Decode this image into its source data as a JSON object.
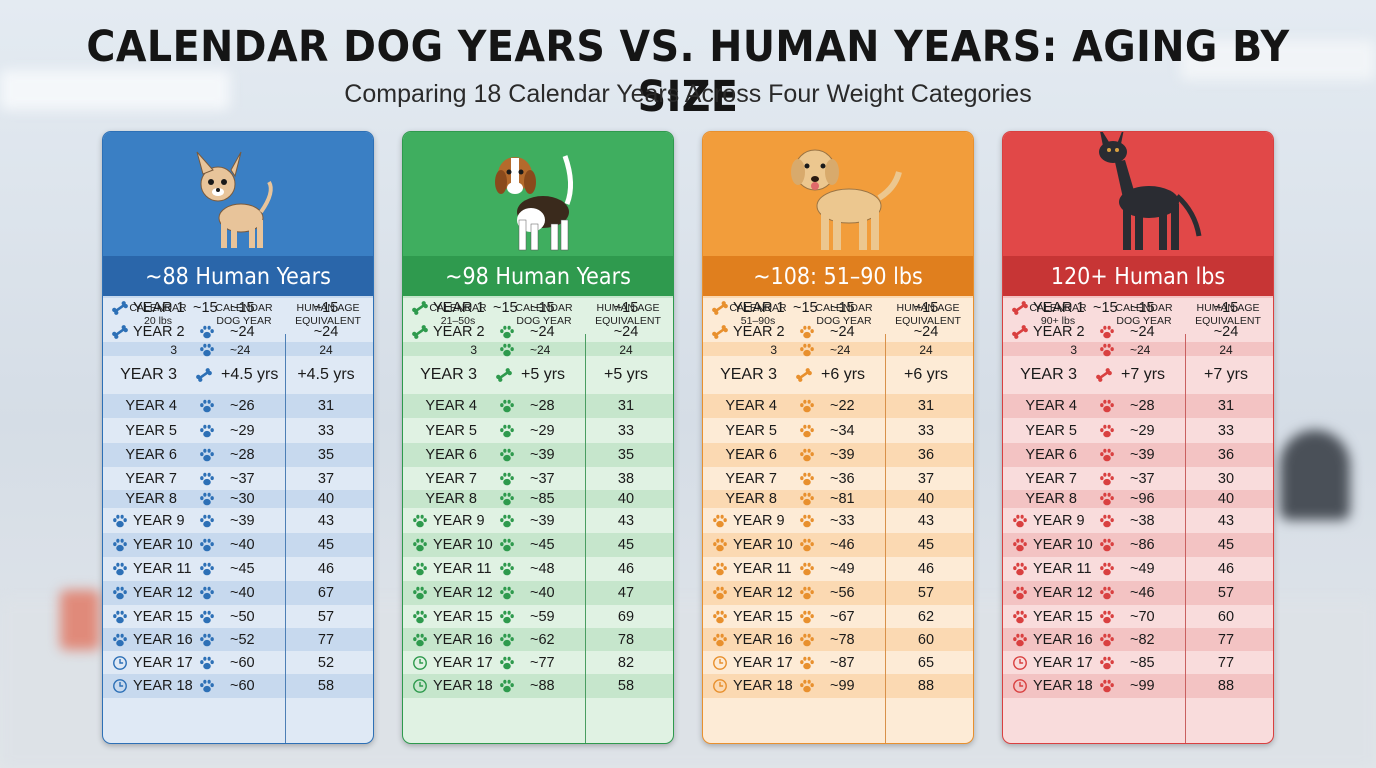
{
  "title": "CALENDAR DOG YEARS VS. HUMAN YEARS: AGING BY SIZE",
  "subtitle": "Comparing 18 Calendar Years Across Four Weight Categories",
  "panels": [
    {
      "id": "small",
      "band": "~88 Human Years",
      "h1": "CALENDAR\n20 lbs",
      "h2": "CALENDAR\nDOG YEAR",
      "h3": "HUMAN AGE\nEQUIVALENT",
      "year3_dog": "+4.5 yrs",
      "year3_human": "+4.5 yrs",
      "accent": "#2d70b6",
      "band_color": "#2a66aa",
      "top_color": "#3a7fc4",
      "row_light": "#dfe9f5",
      "row_dark": "#c7d9ee",
      "line_color": "#4d7fb5",
      "dog": "chihuahua",
      "dog_vals": [
        "~15",
        "~24",
        "~24",
        "",
        "~26",
        "~29",
        "~28",
        "~37",
        "~30",
        "~39",
        "~40",
        "~45",
        "~40",
        "~50",
        "~52",
        "~60",
        "~60"
      ],
      "human_vals": [
        "~15",
        "~24",
        "24",
        "",
        "31",
        "33",
        "35",
        "37",
        "40",
        "43",
        "45",
        "46",
        "67",
        "57",
        "77",
        "52",
        "58"
      ]
    },
    {
      "id": "medium",
      "band": "~98 Human Years",
      "h1": "CALENDAR\n21–50s",
      "h2": "CALENDAR\nDOG YEAR",
      "h3": "HUMAN AGE\nEQUIVALENT",
      "year3_dog": "+5 yrs",
      "year3_human": "+5 yrs",
      "accent": "#2e9a4d",
      "band_color": "#2f9a4e",
      "top_color": "#3fae5f",
      "row_light": "#e0f2e3",
      "row_dark": "#c6e6cc",
      "line_color": "#4a9d61",
      "dog": "beagle",
      "dog_vals": [
        "~15",
        "~24",
        "~24",
        "",
        "~28",
        "~29",
        "~39",
        "~37",
        "~85",
        "~39",
        "~45",
        "~48",
        "~40",
        "~59",
        "~62",
        "~77",
        "~88"
      ],
      "human_vals": [
        "~15",
        "~24",
        "24",
        "",
        "31",
        "33",
        "35",
        "38",
        "40",
        "43",
        "45",
        "46",
        "47",
        "69",
        "78",
        "82",
        "58"
      ]
    },
    {
      "id": "large",
      "band": "~108: 51–90 lbs",
      "h1": "CALENDAR\n51–90s",
      "h2": "CALENDAR\nDOG YEAR",
      "h3": "HUMAN AGE\nEQUIVALENT",
      "year3_dog": "+6 yrs",
      "year3_human": "+6 yrs",
      "accent": "#e8902e",
      "band_color": "#e07f1e",
      "top_color": "#f29d3b",
      "row_light": "#fdebd6",
      "row_dark": "#fbd9b2",
      "line_color": "#d8914a",
      "dog": "lab",
      "dog_vals": [
        "~15",
        "~24",
        "~24",
        "",
        "~22",
        "~34",
        "~39",
        "~36",
        "~81",
        "~33",
        "~46",
        "~49",
        "~56",
        "~67",
        "~78",
        "~87",
        "~99"
      ],
      "human_vals": [
        "~15",
        "~24",
        "24",
        "",
        "31",
        "33",
        "36",
        "37",
        "40",
        "43",
        "45",
        "46",
        "57",
        "62",
        "60",
        "65",
        "88"
      ]
    },
    {
      "id": "giant",
      "band": "120+ Human lbs",
      "h1": "CALENDAR\n90+ lbs",
      "h2": "CALENDAR\nDOG YEAR",
      "h3": "HUMAN AGE\nEQUIVALENT",
      "year3_dog": "+7 yrs",
      "year3_human": "+7 yrs",
      "accent": "#d94040",
      "band_color": "#c73535",
      "top_color": "#e14848",
      "row_light": "#f9dcdc",
      "row_dark": "#f3c3c3",
      "line_color": "#c96060",
      "dog": "danes",
      "dog_vals": [
        "~15",
        "~24",
        "~24",
        "",
        "~28",
        "~29",
        "~39",
        "~37",
        "~96",
        "~38",
        "~86",
        "~49",
        "~46",
        "~70",
        "~82",
        "~85",
        "~99"
      ],
      "human_vals": [
        "~15",
        "~24",
        "24",
        "",
        "31",
        "33",
        "36",
        "30",
        "40",
        "43",
        "45",
        "46",
        "57",
        "60",
        "77",
        "77",
        "88"
      ]
    }
  ],
  "year_labels": [
    "YEAR 1",
    "YEAR 2",
    "3",
    "YEAR 3",
    "YEAR 4",
    "YEAR 5",
    "YEAR 6",
    "YEAR 7",
    "YEAR 8",
    "YEAR 9",
    "YEAR 10",
    "YEAR 11",
    "YEAR 12",
    "YEAR 15",
    "YEAR 16",
    "YEAR 17",
    "YEAR 18"
  ],
  "extra_15": "~15",
  "icons": {
    "left": [
      "bone-icon",
      "bone-icon",
      "none",
      "none",
      "none",
      "none",
      "none",
      "none",
      "none",
      "paw-icon",
      "paw-icon",
      "paw-icon",
      "paw-icon",
      "paw-icon",
      "paw-icon",
      "clock-icon",
      "clock-icon"
    ],
    "mid": [
      "none",
      "paw-icon",
      "paw-icon",
      "bone-icon",
      "paw-icon",
      "paw-icon",
      "paw-icon",
      "paw-icon",
      "paw-icon",
      "paw-icon",
      "paw-icon",
      "paw-icon",
      "paw-icon",
      "paw-icon",
      "paw-icon",
      "paw-icon",
      "paw-icon"
    ]
  }
}
